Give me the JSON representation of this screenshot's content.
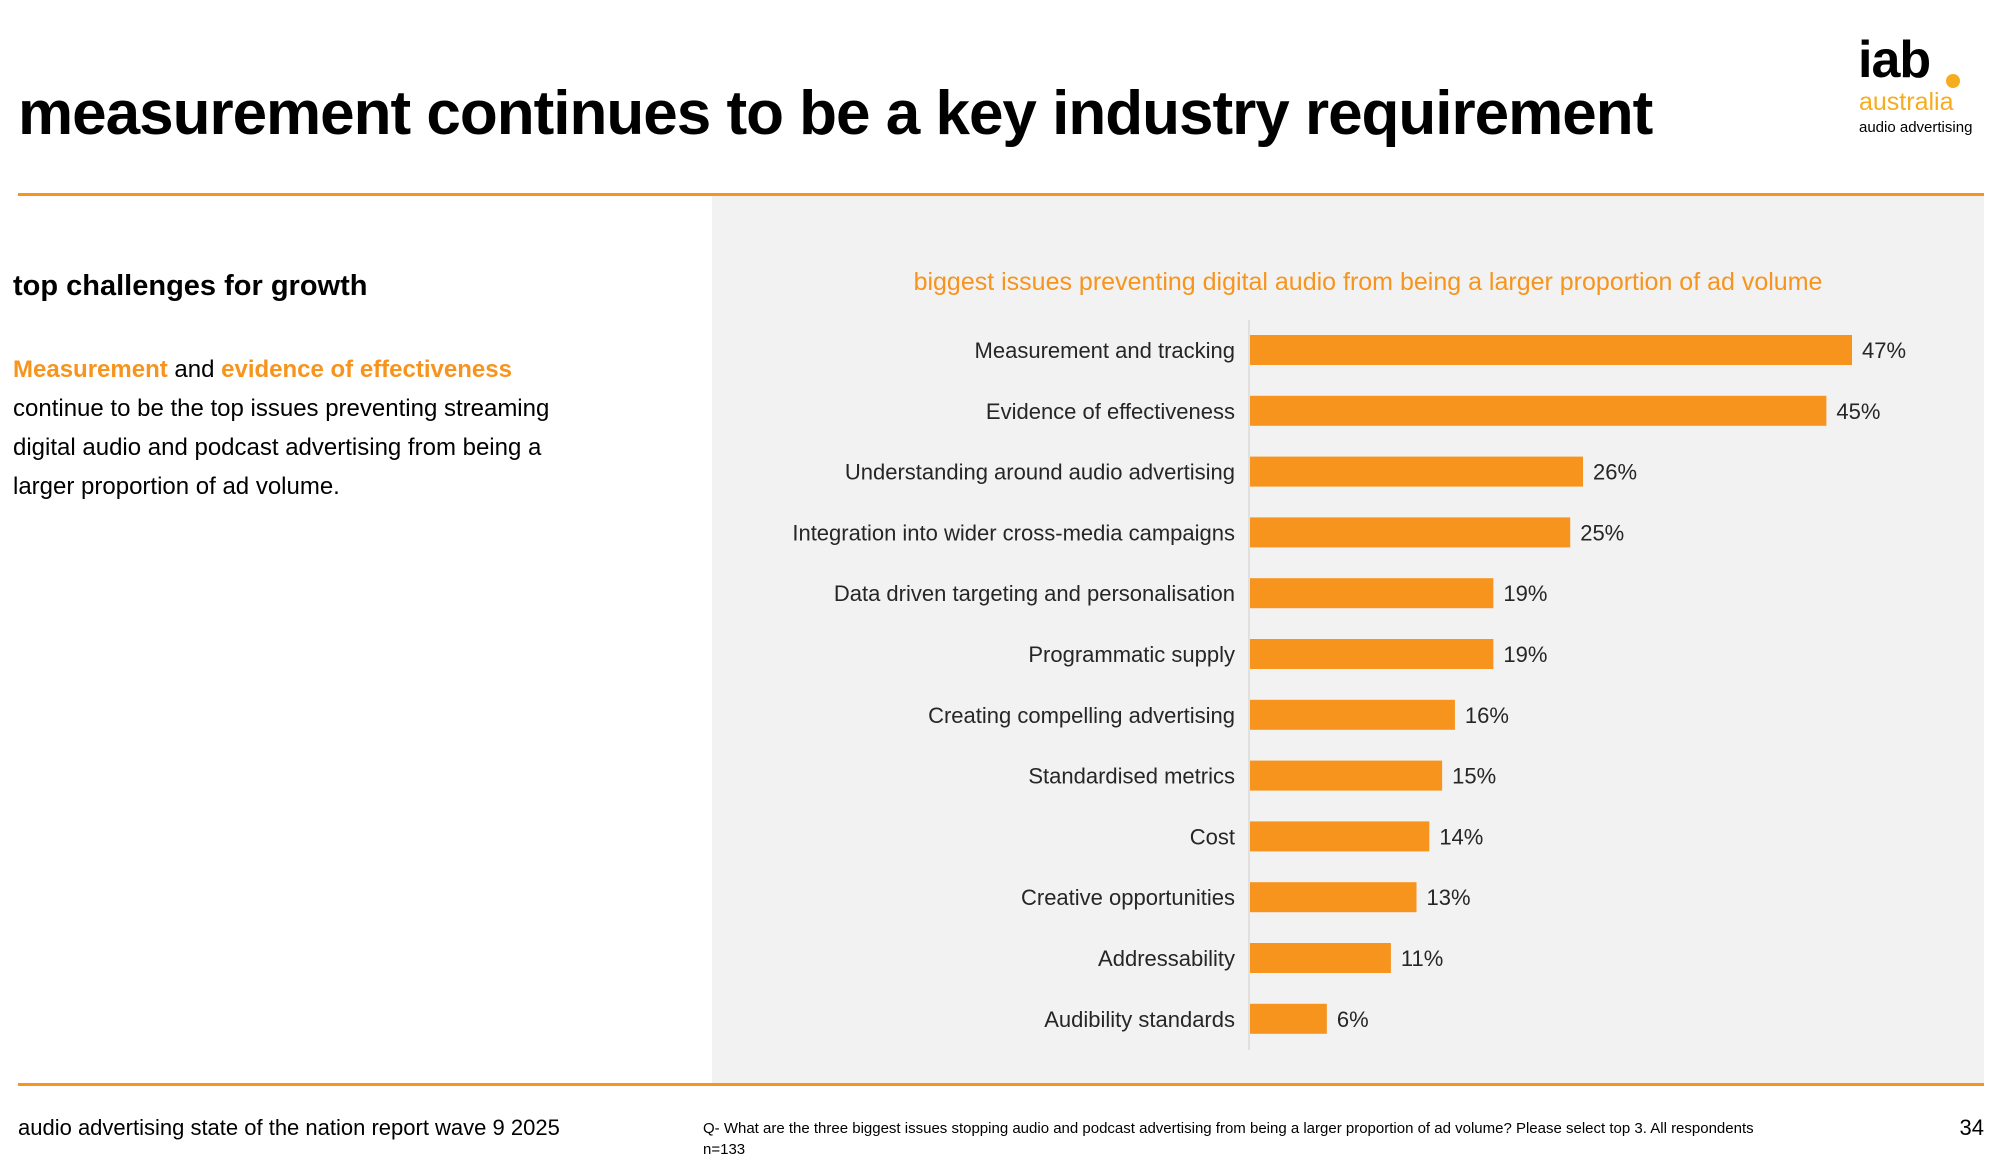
{
  "header": {
    "title": "measurement continues to be a key industry requirement"
  },
  "logo": {
    "brand": "iab",
    "country": "australia",
    "subtitle": "audio advertising",
    "accent_color": "#F7AC1E"
  },
  "left": {
    "heading": "top challenges for growth",
    "highlight_1": "Measurement",
    "connector": " and ",
    "highlight_2": "evidence of effectiveness",
    "body": "continue to be the top issues preventing streaming digital audio and podcast advertising from being a larger proportion of ad volume."
  },
  "colors": {
    "accent": "#F7941D",
    "panel": "#F2F2F2",
    "text": "#262626"
  },
  "chart_data": {
    "type": "bar",
    "orientation": "horizontal",
    "title": "biggest issues preventing digital audio from being a larger proportion of ad volume",
    "categories": [
      "Measurement and tracking",
      "Evidence of effectiveness",
      "Understanding around audio advertising",
      "Integration into wider cross-media campaigns",
      "Data driven targeting and personalisation",
      "Programmatic supply",
      "Creating compelling advertising",
      "Standardised metrics",
      "Cost",
      "Creative opportunities",
      "Addressability",
      "Audibility standards"
    ],
    "values": [
      47,
      45,
      26,
      25,
      19,
      19,
      16,
      15,
      14,
      13,
      11,
      6
    ],
    "data_labels": [
      "47%",
      "45%",
      "26%",
      "25%",
      "19%",
      "19%",
      "16%",
      "15%",
      "14%",
      "13%",
      "11%",
      "6%"
    ],
    "unit": "%",
    "xlabel": "",
    "ylabel": "",
    "xlim": [
      0,
      50
    ],
    "grid": false,
    "legend": "none",
    "bar_color": "#F7941D"
  },
  "footer": {
    "report": "audio advertising state of the nation report wave 9 2025",
    "note": "Q- What are the three biggest issues stopping audio and podcast advertising from being a larger proportion of ad volume? Please select top 3. All respondents n=133",
    "page": "34"
  }
}
